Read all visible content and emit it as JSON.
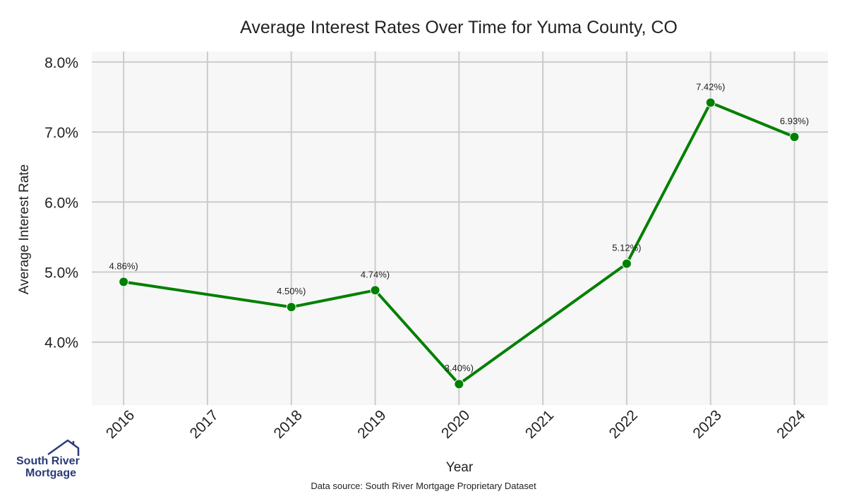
{
  "chart_data": {
    "type": "line",
    "title": "Average Interest Rates Over Time for Yuma County, CO",
    "xlabel": "Year",
    "ylabel": "Average Interest Rate",
    "x": [
      2016,
      2017,
      2018,
      2019,
      2020,
      2021,
      2022,
      2023,
      2024
    ],
    "series": [
      {
        "points": [
          {
            "x": 2016,
            "y": 4.86,
            "label": "4.86%)"
          },
          {
            "x": 2018,
            "y": 4.5,
            "label": "4.50%)"
          },
          {
            "x": 2019,
            "y": 4.74,
            "label": "4.74%)"
          },
          {
            "x": 2020,
            "y": 3.4,
            "label": "3.40%)"
          },
          {
            "x": 2022,
            "y": 5.12,
            "label": "5.12%)"
          },
          {
            "x": 2023,
            "y": 7.42,
            "label": "7.42%)"
          },
          {
            "x": 2024,
            "y": 6.93,
            "label": "6.93%)"
          }
        ]
      }
    ],
    "yticks": [
      4.0,
      5.0,
      6.0,
      7.0,
      8.0
    ],
    "ytick_labels": [
      "4.0%",
      "5.0%",
      "6.0%",
      "7.0%",
      "8.0%"
    ],
    "xtick_labels": [
      "2016",
      "2017",
      "2018",
      "2019",
      "2020",
      "2021",
      "2022",
      "2023",
      "2024"
    ],
    "ylim": [
      3.1,
      8.15
    ],
    "xlim": [
      2015.62,
      2024.4
    ],
    "grid": true,
    "line_color": "#008000",
    "plot_background": "#f7f7f7",
    "grid_color": "#cccccc"
  },
  "footer": {
    "source": "Data source: South River Mortgage Proprietary Dataset"
  },
  "logo": {
    "line1": "South River",
    "line2": "Mortgage",
    "color": "#2a3a7a"
  }
}
